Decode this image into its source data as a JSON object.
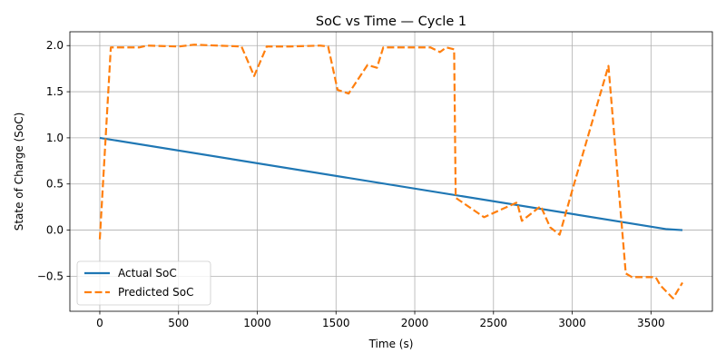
{
  "chart_data": {
    "type": "line",
    "title": "SoC vs Time — Cycle 1",
    "xlabel": "Time (s)",
    "ylabel": "State of Charge (SoC)",
    "xlim": [
      -190,
      3890
    ],
    "ylim": [
      -0.88,
      2.15
    ],
    "xticks": [
      0,
      500,
      1000,
      1500,
      2000,
      2500,
      3000,
      3500
    ],
    "yticks": [
      -0.5,
      0.0,
      0.5,
      1.0,
      1.5,
      2.0
    ],
    "xtick_labels": [
      "0",
      "500",
      "1000",
      "1500",
      "2000",
      "2500",
      "3000",
      "3500"
    ],
    "ytick_labels": [
      "−0.5",
      "0.0",
      "0.5",
      "1.0",
      "1.5",
      "2.0"
    ],
    "grid": true,
    "legend_position": "lower-left",
    "series": [
      {
        "name": "Actual SoC",
        "color": "#1f77b4",
        "style": "solid",
        "x": [
          0,
          3600,
          3700
        ],
        "y": [
          1.0,
          0.01,
          0.0
        ]
      },
      {
        "name": "Predicted SoC",
        "color": "#ff7f0e",
        "style": "dashed",
        "x": [
          0,
          70,
          250,
          300,
          500,
          600,
          750,
          900,
          980,
          1060,
          1200,
          1400,
          1450,
          1510,
          1580,
          1700,
          1760,
          1800,
          1900,
          2100,
          2160,
          2200,
          2250,
          2260,
          2440,
          2650,
          2680,
          2800,
          2860,
          2920,
          3000,
          3230,
          3340,
          3380,
          3530,
          3560,
          3640,
          3700
        ],
        "y": [
          -0.1,
          1.98,
          1.98,
          2.0,
          1.99,
          2.01,
          2.0,
          1.99,
          1.67,
          1.99,
          1.99,
          2.0,
          1.99,
          1.52,
          1.48,
          1.79,
          1.76,
          1.98,
          1.98,
          1.98,
          1.93,
          1.98,
          1.96,
          0.35,
          0.14,
          0.3,
          0.1,
          0.26,
          0.03,
          -0.05,
          0.43,
          1.78,
          -0.47,
          -0.51,
          -0.51,
          -0.6,
          -0.74,
          -0.57
        ]
      }
    ]
  }
}
